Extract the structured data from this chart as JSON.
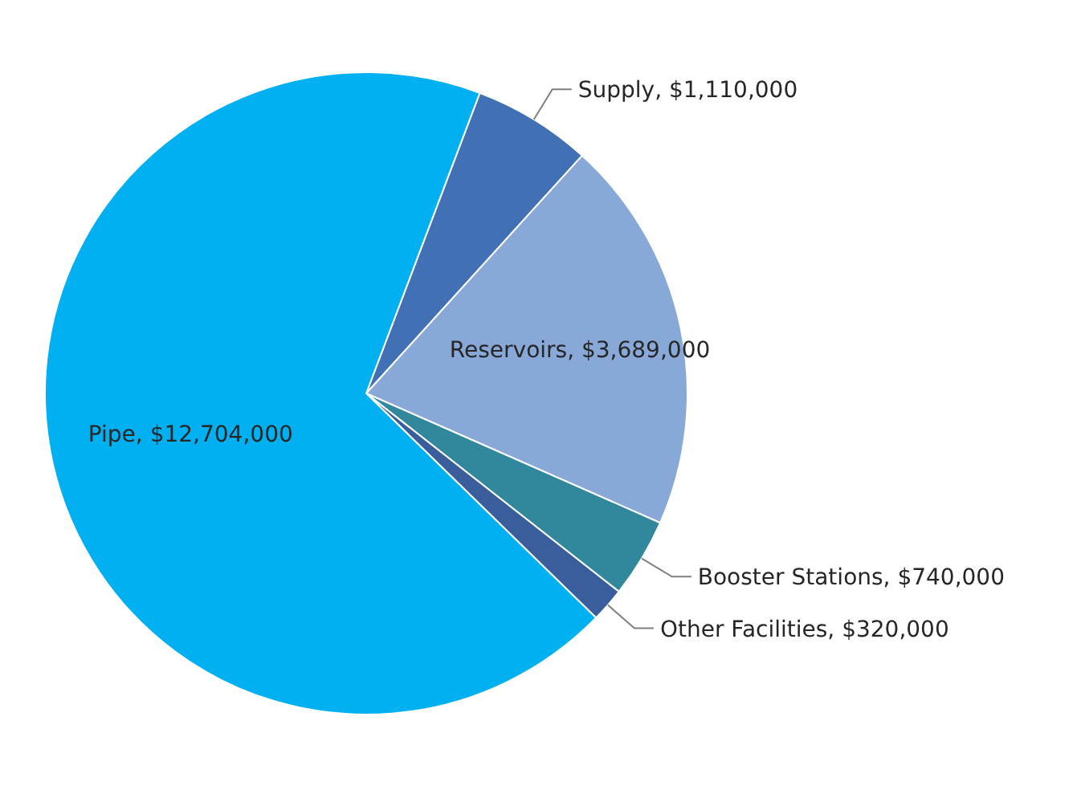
{
  "chart_data": {
    "type": "pie",
    "categories": [
      "Supply",
      "Reservoirs",
      "Booster Stations",
      "Other Facilities",
      "Pipe"
    ],
    "values": [
      1110000,
      3689000,
      740000,
      320000,
      12704000
    ],
    "colors": [
      "#4170b5",
      "#88a8d8",
      "#31879c",
      "#3a5d9c",
      "#00b0f0"
    ],
    "value_labels": [
      "$1,110,000",
      "$3,689,000",
      "$740,000",
      "$320,000",
      "$12,704,000"
    ],
    "legend": false
  }
}
